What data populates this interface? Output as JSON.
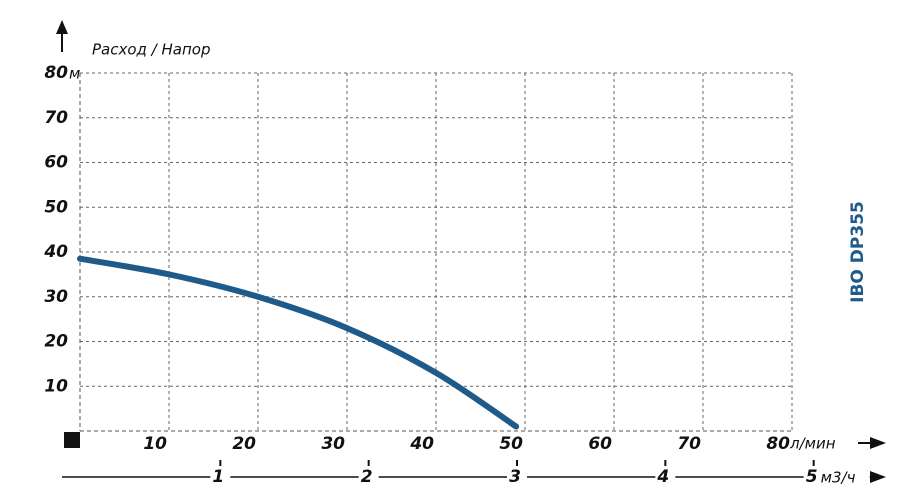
{
  "chart_data": {
    "type": "line",
    "title": "Расход / Напор",
    "side_label": "IBO DP355",
    "y_unit": "м",
    "x_unit": "л/мин",
    "x2_unit": "м3/ч",
    "x": [
      0,
      10,
      20,
      30,
      40,
      49
    ],
    "series": [
      {
        "name": "IBO DP355",
        "color": "#1f5b8a",
        "values": [
          38.5,
          35,
          30,
          23,
          13,
          1
        ]
      }
    ],
    "xlim": [
      0,
      80
    ],
    "xticks": [
      10,
      20,
      30,
      40,
      50,
      60,
      70,
      80
    ],
    "ylim": [
      0,
      80
    ],
    "yticks": [
      10,
      20,
      30,
      40,
      50,
      60,
      70,
      80
    ],
    "x2lim": [
      0,
      4.8
    ],
    "x2ticks": [
      1,
      2,
      3,
      4,
      5
    ],
    "grid": true
  }
}
